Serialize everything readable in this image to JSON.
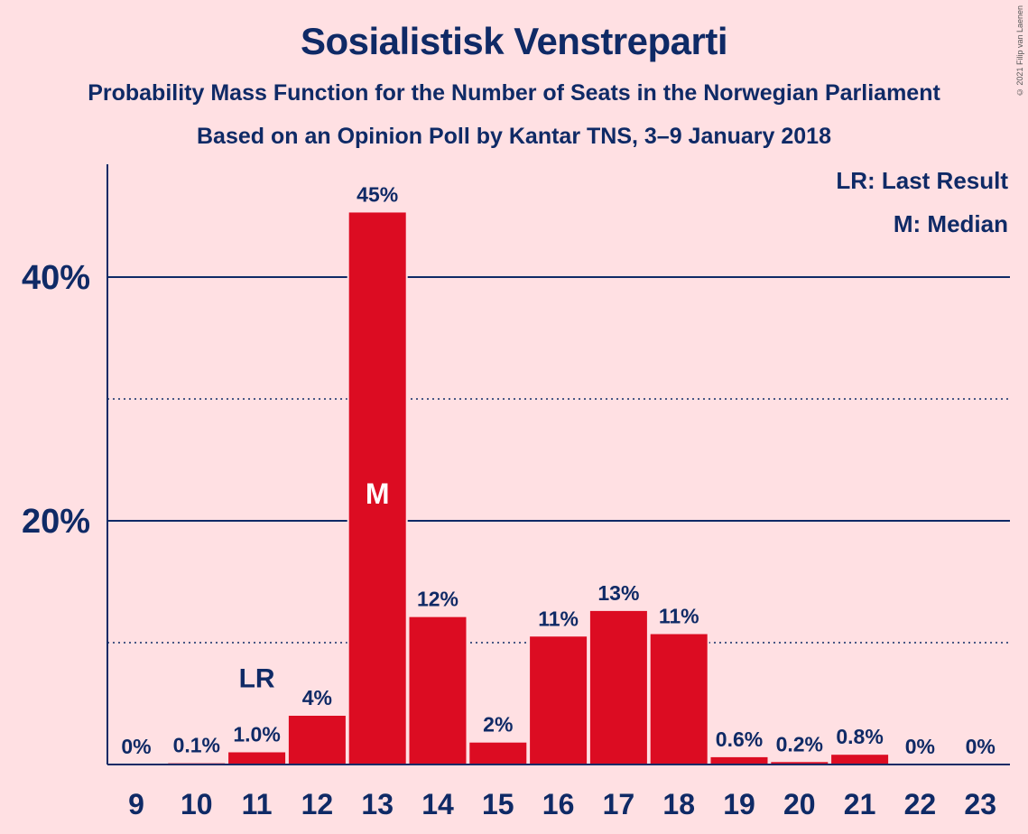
{
  "title": "Sosialistisk Venstreparti",
  "subtitle1": "Probability Mass Function for the Number of Seats in the Norwegian Parliament",
  "subtitle2": "Based on an Opinion Poll by Kantar TNS, 3–9 January 2018",
  "copyright": "© 2021 Filip van Laenen",
  "legend": {
    "last_result": "LR: Last Result",
    "median": "M: Median"
  },
  "colors": {
    "bar": "#dc0c22",
    "text": "#0f2a66",
    "background": "#ffe0e3"
  },
  "chart_data": {
    "type": "bar",
    "xlabel": "",
    "ylabel": "",
    "categories": [
      "9",
      "10",
      "11",
      "12",
      "13",
      "14",
      "15",
      "16",
      "17",
      "18",
      "19",
      "20",
      "21",
      "22",
      "23"
    ],
    "values": [
      0,
      0.1,
      1.0,
      4,
      45.3,
      12.1,
      1.8,
      10.5,
      12.6,
      10.7,
      0.6,
      0.2,
      0.8,
      0,
      0
    ],
    "value_labels": [
      "0%",
      "0.1%",
      "1.0%",
      "4%",
      "45%",
      "12%",
      "2%",
      "11%",
      "13%",
      "11%",
      "0.6%",
      "0.2%",
      "0.8%",
      "0%",
      "0%"
    ],
    "ylim": [
      0,
      49.5
    ],
    "yticks": [
      {
        "value": 20,
        "label": "20%",
        "style": "solid"
      },
      {
        "value": 40,
        "label": "40%",
        "style": "solid"
      }
    ],
    "minor_grid": [
      10,
      30
    ],
    "markers": [
      {
        "category": "11",
        "label": "LR",
        "meaning": "Last Result"
      },
      {
        "category": "13",
        "label": "M",
        "meaning": "Median"
      }
    ]
  }
}
